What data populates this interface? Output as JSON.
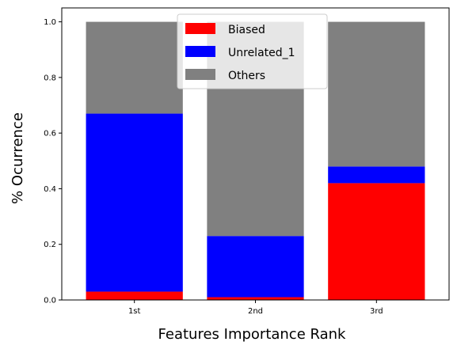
{
  "chart_data": {
    "type": "bar",
    "stacked": true,
    "title": "",
    "xlabel": "Features Importance Rank",
    "ylabel": "% Ocurrence",
    "categories": [
      "1st",
      "2nd",
      "3rd"
    ],
    "series": [
      {
        "name": "Biased",
        "values": [
          0.03,
          0.01,
          0.42
        ],
        "color": "#ff0000"
      },
      {
        "name": "Unrelated_1",
        "values": [
          0.64,
          0.22,
          0.06
        ],
        "color": "#0000ff"
      },
      {
        "name": "Others",
        "values": [
          0.33,
          0.77,
          0.52
        ],
        "color": "#808080"
      }
    ],
    "ylim": [
      0,
      1.05
    ],
    "yticks": [
      "0.0",
      "0.2",
      "0.4",
      "0.6",
      "0.8",
      "1.0"
    ],
    "ytick_values": [
      0,
      0.2,
      0.4,
      0.6,
      0.8,
      1.0
    ],
    "grid": false,
    "legend_position": "top-center"
  }
}
